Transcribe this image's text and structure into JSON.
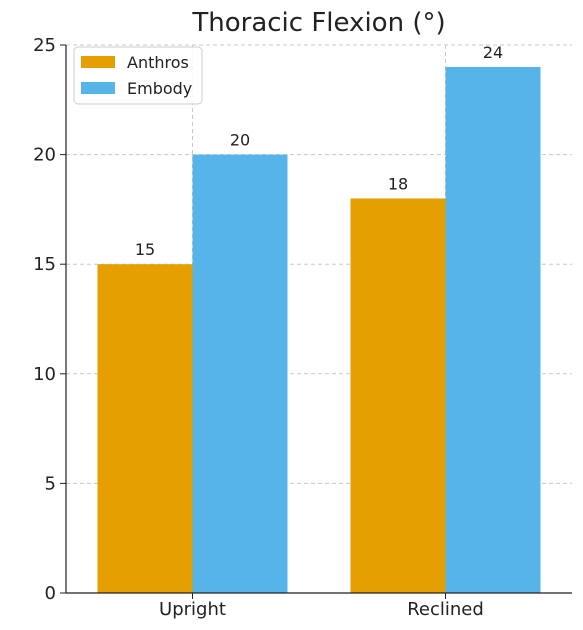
{
  "chart_data": {
    "type": "bar",
    "title": "Thoracic Flexion (°)",
    "xlabel": "",
    "ylabel": "",
    "categories": [
      "Upright",
      "Reclined"
    ],
    "series": [
      {
        "name": "Anthros",
        "values": [
          15,
          18
        ],
        "color": "#E69F00"
      },
      {
        "name": "Embody",
        "values": [
          20,
          24
        ],
        "color": "#56B4E9"
      }
    ],
    "ylim": [
      0,
      25
    ],
    "yticks": [
      0,
      5,
      10,
      15,
      20,
      25
    ],
    "grid": true,
    "legend_position": "top-left",
    "data_labels": true
  }
}
